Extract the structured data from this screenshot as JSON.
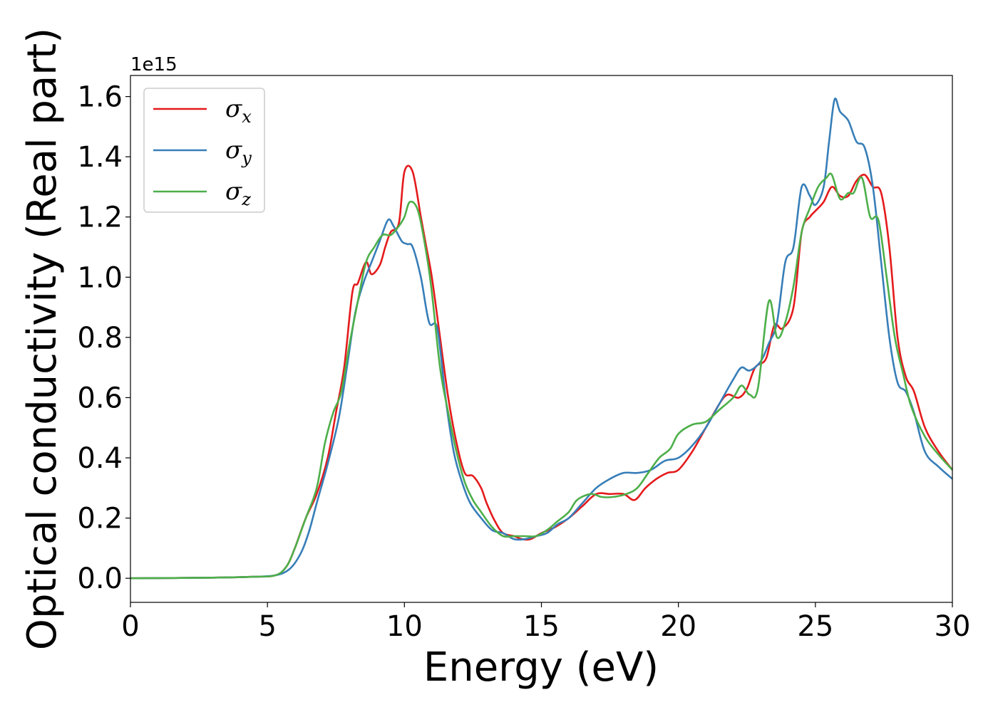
{
  "chart_data": {
    "type": "line",
    "xlabel": "Energy (eV)",
    "ylabel": "Optical conductivity (Real part)",
    "y_offset_label": "1e15",
    "xlim": [
      0,
      30
    ],
    "ylim": [
      -0.08,
      1.67
    ],
    "x_ticks": [
      0,
      5,
      10,
      15,
      20,
      25,
      30
    ],
    "y_ticks": [
      0.0,
      0.2,
      0.4,
      0.6,
      0.8,
      1.0,
      1.2,
      1.4,
      1.6
    ],
    "x_tick_labels": [
      "0",
      "5",
      "10",
      "15",
      "20",
      "25",
      "30"
    ],
    "y_tick_labels": [
      "0.0",
      "0.2",
      "0.4",
      "0.6",
      "0.8",
      "1.0",
      "1.2",
      "1.4",
      "1.6"
    ],
    "grid": false,
    "legend_position": "upper-left",
    "series": [
      {
        "name": "σx",
        "legend_base": "σ",
        "legend_sub": "x",
        "color": "#e41a1c",
        "points": [
          [
            0,
            0
          ],
          [
            3,
            0.002
          ],
          [
            4.5,
            0.005
          ],
          [
            5.3,
            0.01
          ],
          [
            5.7,
            0.04
          ],
          [
            6,
            0.1
          ],
          [
            6.4,
            0.2
          ],
          [
            6.8,
            0.28
          ],
          [
            7.2,
            0.4
          ],
          [
            7.5,
            0.55
          ],
          [
            7.8,
            0.7
          ],
          [
            8.1,
            0.95
          ],
          [
            8.3,
            0.98
          ],
          [
            8.6,
            1.05
          ],
          [
            8.8,
            1.01
          ],
          [
            9.1,
            1.04
          ],
          [
            9.3,
            1.1
          ],
          [
            9.5,
            1.15
          ],
          [
            9.8,
            1.18
          ],
          [
            10,
            1.35
          ],
          [
            10.3,
            1.35
          ],
          [
            10.6,
            1.2
          ],
          [
            10.8,
            1.1
          ],
          [
            11,
            1.0
          ],
          [
            11.3,
            0.8
          ],
          [
            11.6,
            0.6
          ],
          [
            11.9,
            0.45
          ],
          [
            12.2,
            0.35
          ],
          [
            12.5,
            0.34
          ],
          [
            12.8,
            0.3
          ],
          [
            13,
            0.25
          ],
          [
            13.3,
            0.19
          ],
          [
            13.6,
            0.15
          ],
          [
            14,
            0.14
          ],
          [
            14.3,
            0.13
          ],
          [
            14.6,
            0.13
          ],
          [
            15,
            0.15
          ],
          [
            15.5,
            0.17
          ],
          [
            16,
            0.2
          ],
          [
            16.5,
            0.24
          ],
          [
            17,
            0.28
          ],
          [
            17.5,
            0.28
          ],
          [
            18,
            0.28
          ],
          [
            18.4,
            0.26
          ],
          [
            18.8,
            0.3
          ],
          [
            19.2,
            0.33
          ],
          [
            19.6,
            0.35
          ],
          [
            20,
            0.36
          ],
          [
            20.5,
            0.42
          ],
          [
            21,
            0.5
          ],
          [
            21.5,
            0.58
          ],
          [
            21.8,
            0.61
          ],
          [
            22.2,
            0.6
          ],
          [
            22.5,
            0.63
          ],
          [
            22.8,
            0.7
          ],
          [
            23.2,
            0.73
          ],
          [
            23.5,
            0.84
          ],
          [
            23.8,
            0.83
          ],
          [
            24.2,
            0.9
          ],
          [
            24.5,
            1.15
          ],
          [
            24.8,
            1.2
          ],
          [
            25,
            1.22
          ],
          [
            25.3,
            1.25
          ],
          [
            25.6,
            1.3
          ],
          [
            25.9,
            1.27
          ],
          [
            26.2,
            1.27
          ],
          [
            26.5,
            1.32
          ],
          [
            26.8,
            1.34
          ],
          [
            27.1,
            1.3
          ],
          [
            27.4,
            1.28
          ],
          [
            27.7,
            1.1
          ],
          [
            28,
            0.8
          ],
          [
            28.3,
            0.67
          ],
          [
            28.6,
            0.62
          ],
          [
            29,
            0.5
          ],
          [
            29.5,
            0.42
          ],
          [
            30,
            0.36
          ]
        ]
      },
      {
        "name": "σy",
        "legend_base": "σ",
        "legend_sub": "y",
        "color": "#377eb8",
        "points": [
          [
            0,
            0
          ],
          [
            3,
            0.002
          ],
          [
            4.5,
            0.005
          ],
          [
            5.3,
            0.01
          ],
          [
            5.8,
            0.03
          ],
          [
            6.2,
            0.08
          ],
          [
            6.5,
            0.15
          ],
          [
            6.8,
            0.25
          ],
          [
            7.2,
            0.38
          ],
          [
            7.6,
            0.53
          ],
          [
            7.9,
            0.7
          ],
          [
            8.2,
            0.88
          ],
          [
            8.5,
            0.98
          ],
          [
            8.8,
            1.05
          ],
          [
            9.1,
            1.12
          ],
          [
            9.4,
            1.19
          ],
          [
            9.6,
            1.17
          ],
          [
            9.9,
            1.12
          ],
          [
            10.1,
            1.11
          ],
          [
            10.3,
            1.1
          ],
          [
            10.6,
            1.0
          ],
          [
            10.9,
            0.85
          ],
          [
            11.2,
            0.83
          ],
          [
            11.5,
            0.6
          ],
          [
            11.8,
            0.42
          ],
          [
            12.1,
            0.32
          ],
          [
            12.4,
            0.25
          ],
          [
            12.8,
            0.2
          ],
          [
            13.2,
            0.16
          ],
          [
            13.6,
            0.15
          ],
          [
            14,
            0.13
          ],
          [
            14.4,
            0.13
          ],
          [
            14.8,
            0.14
          ],
          [
            15.2,
            0.15
          ],
          [
            15.6,
            0.18
          ],
          [
            16,
            0.2
          ],
          [
            16.5,
            0.25
          ],
          [
            17,
            0.3
          ],
          [
            17.5,
            0.33
          ],
          [
            18,
            0.35
          ],
          [
            18.5,
            0.35
          ],
          [
            19,
            0.36
          ],
          [
            19.5,
            0.39
          ],
          [
            20,
            0.4
          ],
          [
            20.5,
            0.44
          ],
          [
            21,
            0.5
          ],
          [
            21.5,
            0.58
          ],
          [
            22,
            0.66
          ],
          [
            22.3,
            0.7
          ],
          [
            22.6,
            0.69
          ],
          [
            23,
            0.72
          ],
          [
            23.3,
            0.78
          ],
          [
            23.6,
            0.85
          ],
          [
            23.9,
            1.05
          ],
          [
            24.2,
            1.1
          ],
          [
            24.5,
            1.3
          ],
          [
            24.8,
            1.27
          ],
          [
            25,
            1.24
          ],
          [
            25.3,
            1.3
          ],
          [
            25.5,
            1.45
          ],
          [
            25.7,
            1.59
          ],
          [
            25.9,
            1.55
          ],
          [
            26.2,
            1.52
          ],
          [
            26.5,
            1.45
          ],
          [
            26.8,
            1.43
          ],
          [
            27.1,
            1.3
          ],
          [
            27.4,
            1.05
          ],
          [
            27.7,
            0.8
          ],
          [
            28,
            0.65
          ],
          [
            28.3,
            0.62
          ],
          [
            28.6,
            0.55
          ],
          [
            29,
            0.42
          ],
          [
            29.5,
            0.37
          ],
          [
            30,
            0.33
          ]
        ]
      },
      {
        "name": "σz",
        "legend_base": "σ",
        "legend_sub": "z",
        "color": "#4daf4a",
        "points": [
          [
            0,
            0
          ],
          [
            3,
            0.002
          ],
          [
            4.5,
            0.005
          ],
          [
            5.3,
            0.01
          ],
          [
            5.7,
            0.04
          ],
          [
            6,
            0.1
          ],
          [
            6.4,
            0.2
          ],
          [
            6.8,
            0.3
          ],
          [
            7.1,
            0.45
          ],
          [
            7.4,
            0.55
          ],
          [
            7.7,
            0.62
          ],
          [
            8,
            0.78
          ],
          [
            8.3,
            0.92
          ],
          [
            8.6,
            1.05
          ],
          [
            8.9,
            1.1
          ],
          [
            9.2,
            1.14
          ],
          [
            9.5,
            1.14
          ],
          [
            9.8,
            1.17
          ],
          [
            10,
            1.2
          ],
          [
            10.2,
            1.25
          ],
          [
            10.5,
            1.22
          ],
          [
            10.8,
            1.08
          ],
          [
            11,
            0.95
          ],
          [
            11.3,
            0.7
          ],
          [
            11.6,
            0.55
          ],
          [
            11.9,
            0.42
          ],
          [
            12.2,
            0.32
          ],
          [
            12.5,
            0.26
          ],
          [
            12.8,
            0.22
          ],
          [
            13.2,
            0.17
          ],
          [
            13.6,
            0.14
          ],
          [
            14,
            0.14
          ],
          [
            14.4,
            0.14
          ],
          [
            14.8,
            0.14
          ],
          [
            15.2,
            0.16
          ],
          [
            15.6,
            0.19
          ],
          [
            16,
            0.22
          ],
          [
            16.3,
            0.26
          ],
          [
            16.8,
            0.28
          ],
          [
            17.2,
            0.27
          ],
          [
            17.6,
            0.27
          ],
          [
            18.1,
            0.28
          ],
          [
            18.5,
            0.3
          ],
          [
            18.9,
            0.35
          ],
          [
            19.3,
            0.4
          ],
          [
            19.7,
            0.43
          ],
          [
            20,
            0.48
          ],
          [
            20.5,
            0.51
          ],
          [
            21,
            0.52
          ],
          [
            21.5,
            0.56
          ],
          [
            22,
            0.6
          ],
          [
            22.3,
            0.64
          ],
          [
            22.6,
            0.61
          ],
          [
            22.9,
            0.63
          ],
          [
            23.3,
            0.92
          ],
          [
            23.6,
            0.8
          ],
          [
            23.9,
            0.85
          ],
          [
            24.2,
            0.97
          ],
          [
            24.5,
            1.15
          ],
          [
            24.8,
            1.23
          ],
          [
            25.1,
            1.3
          ],
          [
            25.4,
            1.33
          ],
          [
            25.6,
            1.34
          ],
          [
            25.9,
            1.26
          ],
          [
            26.2,
            1.28
          ],
          [
            26.4,
            1.28
          ],
          [
            26.7,
            1.33
          ],
          [
            27,
            1.2
          ],
          [
            27.3,
            1.19
          ],
          [
            27.6,
            1.0
          ],
          [
            27.9,
            0.8
          ],
          [
            28.2,
            0.68
          ],
          [
            28.5,
            0.57
          ],
          [
            29,
            0.47
          ],
          [
            29.5,
            0.41
          ],
          [
            30,
            0.36
          ]
        ]
      }
    ]
  }
}
